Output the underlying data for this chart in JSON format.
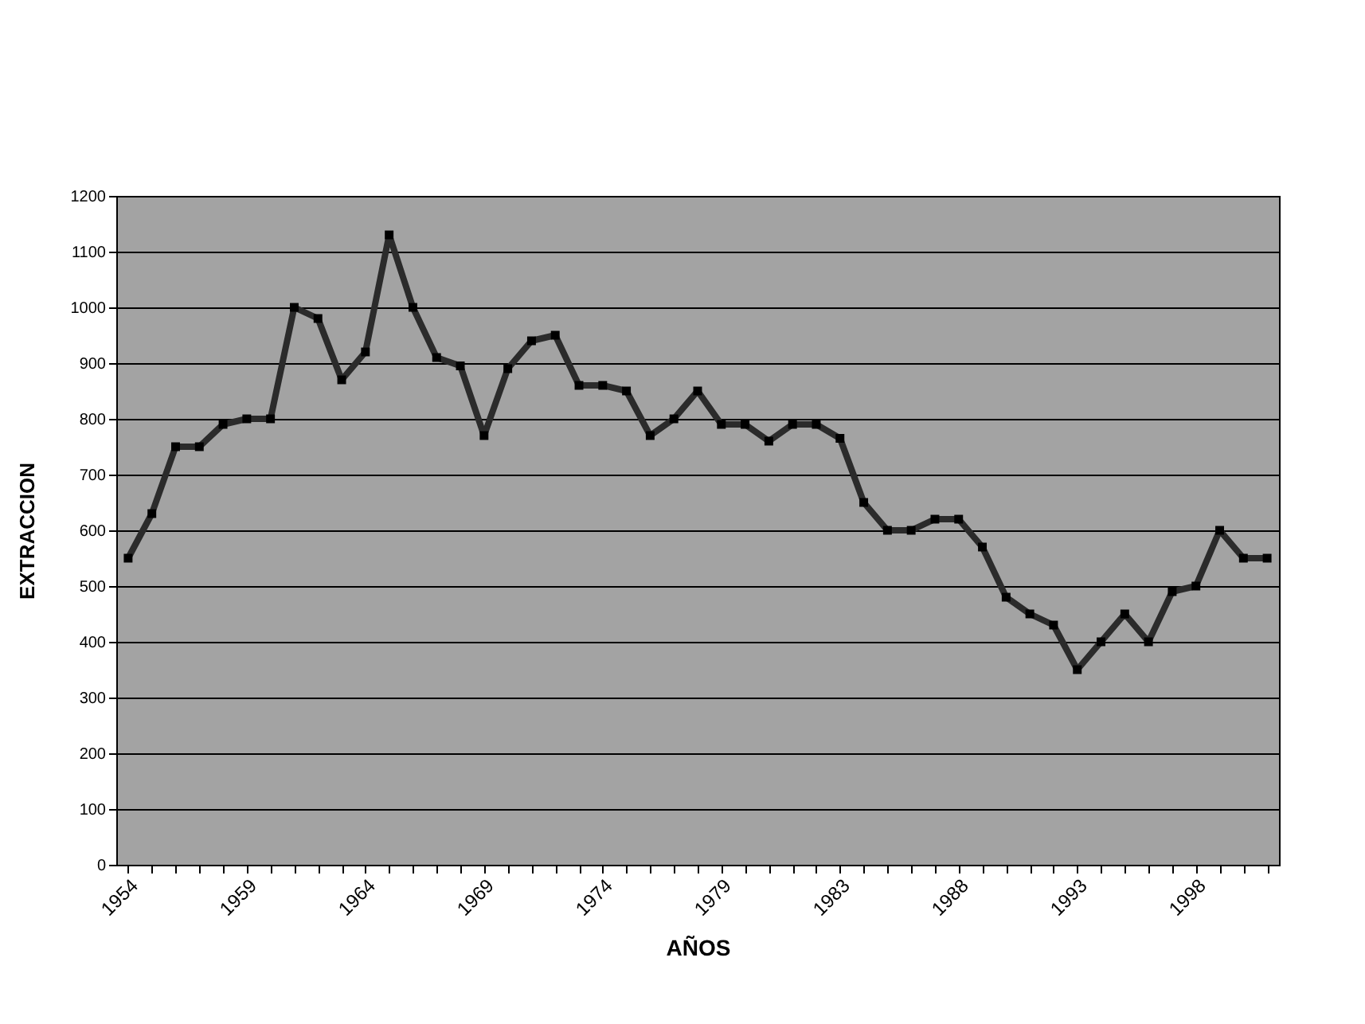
{
  "chart_data": {
    "type": "line",
    "xlabel": "AÑOS",
    "ylabel": "EXTRACCION",
    "categories": [
      "1954",
      null,
      null,
      null,
      null,
      "1959",
      null,
      null,
      null,
      null,
      "1964",
      null,
      null,
      null,
      null,
      "1969",
      null,
      null,
      null,
      null,
      "1974",
      null,
      null,
      null,
      null,
      "1979",
      null,
      null,
      null,
      null,
      "1983",
      null,
      null,
      null,
      null,
      "1988",
      null,
      null,
      null,
      null,
      "1993",
      null,
      null,
      null,
      null,
      "1998",
      null,
      null,
      null
    ],
    "series": [
      {
        "color": "#2b2b2b",
        "values": [
          550,
          630,
          750,
          750,
          790,
          800,
          800,
          1000,
          980,
          870,
          920,
          1130,
          1000,
          910,
          895,
          770,
          890,
          940,
          950,
          860,
          860,
          850,
          770,
          800,
          850,
          790,
          790,
          760,
          790,
          790,
          765,
          650,
          600,
          600,
          620,
          620,
          570,
          480,
          450,
          430,
          350,
          400,
          450,
          400,
          490,
          500,
          600,
          550,
          550
        ]
      }
    ],
    "ylim": [
      0,
      1200
    ],
    "yticks": [
      0,
      100,
      200,
      300,
      400,
      500,
      600,
      700,
      800,
      900,
      1000,
      1100,
      1200
    ],
    "grid": "y",
    "marker": "square"
  }
}
